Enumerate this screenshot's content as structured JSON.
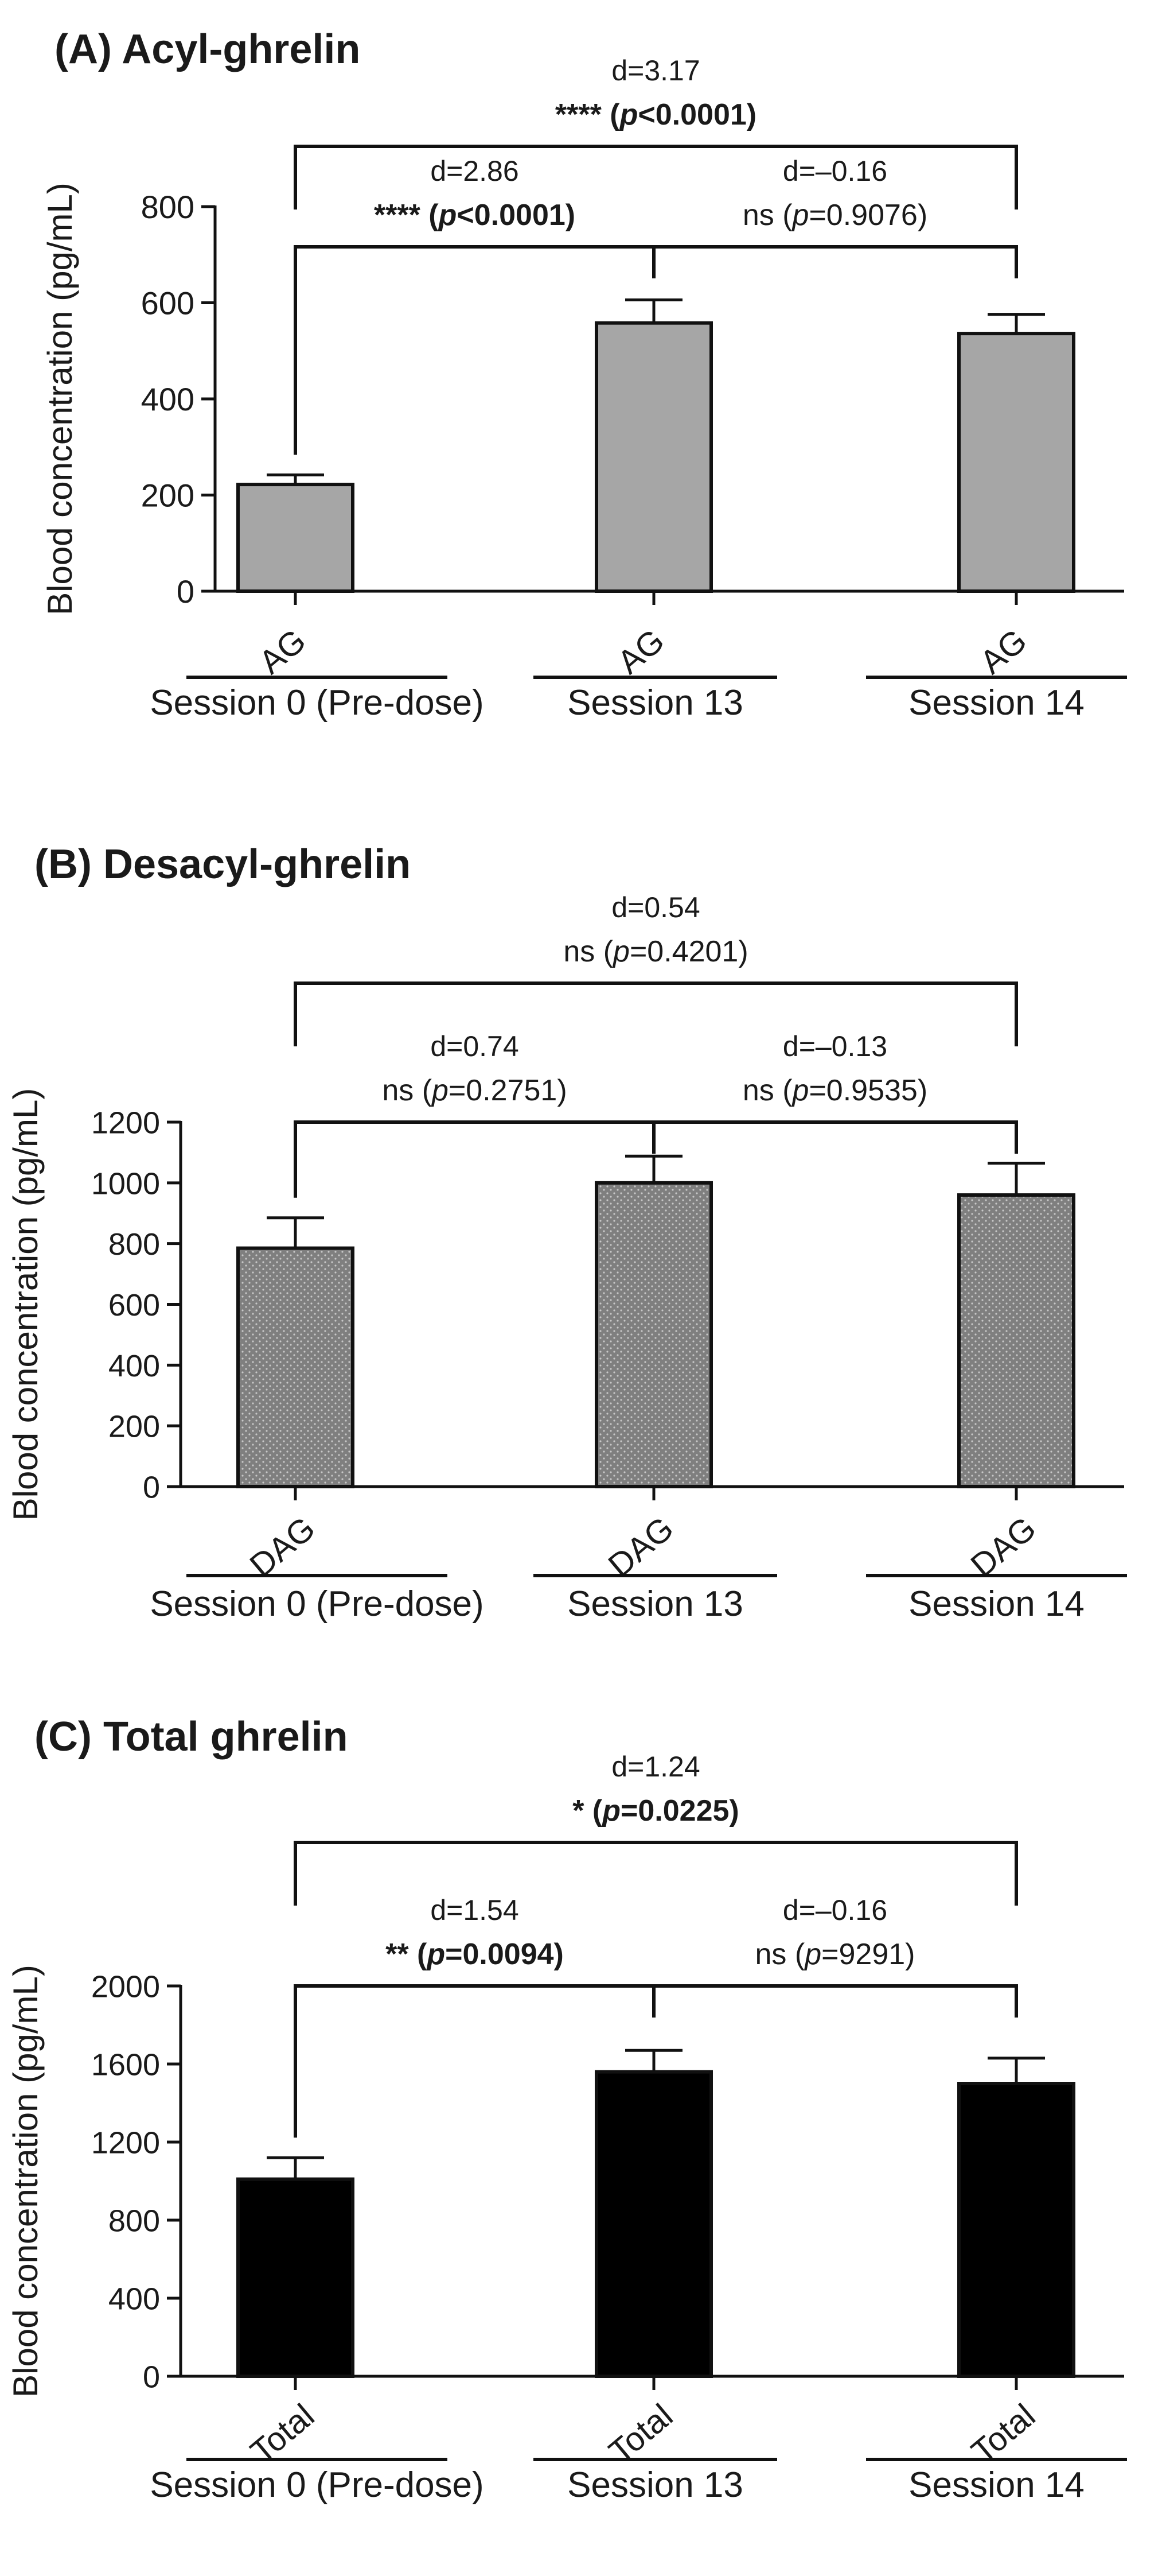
{
  "chart_data": [
    {
      "type": "bar",
      "title": "(A) Acyl-ghrelin",
      "ylabel": "Blood concentration (pg/mL)",
      "ylim": [
        0,
        800
      ],
      "yticks": [
        0,
        200,
        400,
        600,
        800
      ],
      "categories": [
        "AG",
        "AG",
        "AG"
      ],
      "groups": [
        "Session 0 (Pre-dose)",
        "Session 13",
        "Session 14"
      ],
      "values": [
        222,
        558,
        536
      ],
      "errors": [
        20,
        48,
        40
      ],
      "fill": "#a6a6a6",
      "pattern": "none",
      "comparisons": [
        {
          "from": 0,
          "to": 1,
          "d": "d=2.86",
          "stars": "****",
          "p": "(p<0.0001)",
          "bold": true
        },
        {
          "from": 1,
          "to": 2,
          "d": "d=–0.16",
          "stars": "ns",
          "p": "(p=0.9076)",
          "bold": false
        },
        {
          "from": 0,
          "to": 2,
          "d": "d=3.17",
          "stars": "****",
          "p": "(p<0.0001)",
          "bold": true
        }
      ]
    },
    {
      "type": "bar",
      "title": "(B) Desacyl-ghrelin",
      "ylabel": "Blood concentration (pg/mL)",
      "ylim": [
        0,
        1200
      ],
      "yticks": [
        0,
        200,
        400,
        600,
        800,
        1000,
        1200
      ],
      "categories": [
        "DAG",
        "DAG",
        "DAG"
      ],
      "groups": [
        "Session 0 (Pre-dose)",
        "Session 13",
        "Session 14"
      ],
      "values": [
        785,
        1000,
        960
      ],
      "errors": [
        100,
        88,
        105
      ],
      "fill": "#7f7f7f",
      "pattern": "dots",
      "comparisons": [
        {
          "from": 0,
          "to": 1,
          "d": "d=0.74",
          "stars": "ns",
          "p": "(p=0.2751)",
          "bold": false
        },
        {
          "from": 1,
          "to": 2,
          "d": "d=–0.13",
          "stars": "ns",
          "p": "(p=0.9535)",
          "bold": false
        },
        {
          "from": 0,
          "to": 2,
          "d": "d=0.54",
          "stars": "ns",
          "p": "(p=0.4201)",
          "bold": false
        }
      ]
    },
    {
      "type": "bar",
      "title": "(C)  Total ghrelin",
      "ylabel": "Blood concentration (pg/mL)",
      "ylim": [
        0,
        2000
      ],
      "yticks": [
        0,
        400,
        800,
        1200,
        1600,
        2000
      ],
      "categories": [
        "Total",
        "Total",
        "Total"
      ],
      "groups": [
        "Session 0 (Pre-dose)",
        "Session 13",
        "Session 14"
      ],
      "values": [
        1010,
        1560,
        1500
      ],
      "errors": [
        110,
        110,
        130
      ],
      "fill": "#000000",
      "pattern": "none",
      "comparisons": [
        {
          "from": 0,
          "to": 1,
          "d": "d=1.54",
          "stars": "**",
          "p": "(p=0.0094)",
          "bold": true
        },
        {
          "from": 1,
          "to": 2,
          "d": "d=–0.16",
          "stars": "ns",
          "p": "(p=9291)",
          "bold": false
        },
        {
          "from": 0,
          "to": 2,
          "d": "d=1.24",
          "stars": "*",
          "p": "(p=0.0225)",
          "bold": true
        }
      ]
    }
  ]
}
